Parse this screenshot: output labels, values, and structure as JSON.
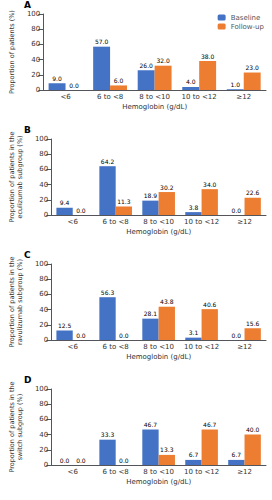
{
  "chart_data": [
    {
      "type": "bar",
      "title": "A",
      "ylabel": "Proportion of patients (%)",
      "xlabel": "Hemoglobin (g/dL)",
      "categories": [
        "<6",
        "6 to <8",
        "8 to <10",
        "10 to <12",
        "≥12"
      ],
      "series": [
        {
          "name": "Baseline",
          "color": "#4472c4",
          "values": [
            9.0,
            57.0,
            26.0,
            4.0,
            1.0
          ],
          "value_labels": [
            "9.0",
            "57.0",
            "26.0",
            "4.0",
            "1.0"
          ]
        },
        {
          "name": "Follow-up",
          "color": "#ed7d31",
          "values": [
            0.0,
            6.0,
            32.0,
            38.0,
            23.0
          ],
          "value_labels": [
            "0.0",
            "6.0",
            "32.0",
            "38.0",
            "23.0"
          ]
        }
      ],
      "ylim": [
        0,
        100
      ],
      "yticks": [
        0,
        20,
        40,
        60,
        80,
        100
      ],
      "grid": false,
      "data_labels": true,
      "legend": "upper right"
    },
    {
      "type": "bar",
      "title": "B",
      "ylabel": "Proportion of patients in the\neculizumab subgroup (%)",
      "xlabel": "Hemoglobin (g/dL)",
      "categories": [
        "<6",
        "6 to <8",
        "8 to <10",
        "10 to <12",
        "≥12"
      ],
      "series": [
        {
          "name": "Baseline",
          "color": "#4472c4",
          "values": [
            9.4,
            64.2,
            18.9,
            3.8,
            0.0
          ],
          "value_labels": [
            "9.4",
            "64.2",
            "18.9",
            "3.8",
            "0.0"
          ]
        },
        {
          "name": "Follow-up",
          "color": "#ed7d31",
          "values": [
            0.0,
            11.3,
            30.2,
            34.0,
            22.6
          ],
          "value_labels": [
            "0.0",
            "11.3",
            "30.2",
            "34.0",
            "22.6"
          ]
        }
      ],
      "ylim": [
        0,
        100
      ],
      "yticks": [
        0,
        20,
        40,
        60,
        80,
        100
      ],
      "grid": false,
      "data_labels": true
    },
    {
      "type": "bar",
      "title": "C",
      "ylabel": "Proportion of patients in the\nravulizumab subgroup (%)",
      "xlabel": "Hemoglobin (g/dL)",
      "categories": [
        "<6",
        "6 to <8",
        "8 to <10",
        "10 to <12",
        "≥12"
      ],
      "series": [
        {
          "name": "Baseline",
          "color": "#4472c4",
          "values": [
            12.5,
            56.3,
            28.1,
            3.1,
            0.0
          ],
          "value_labels": [
            "12.5",
            "56.3",
            "28.1",
            "3.1",
            "0.0"
          ]
        },
        {
          "name": "Follow-up",
          "color": "#ed7d31",
          "values": [
            0.0,
            0.0,
            43.8,
            40.6,
            15.6
          ],
          "value_labels": [
            "0.0",
            "0.0",
            "43.8",
            "40.6",
            "15.6"
          ]
        }
      ],
      "ylim": [
        0,
        100
      ],
      "yticks": [
        0,
        20,
        40,
        60,
        80,
        100
      ],
      "grid": false,
      "data_labels": true
    },
    {
      "type": "bar",
      "title": "D",
      "ylabel": "Proportion of patients in the\nswitch subgroup (%)",
      "xlabel": "Hemoglobin (g/dL)",
      "categories": [
        "<6",
        "6 to <8",
        "8 to <10",
        "10 to <12",
        "≥12"
      ],
      "series": [
        {
          "name": "Baseline",
          "color": "#4472c4",
          "values": [
            0.0,
            33.3,
            46.7,
            6.7,
            6.7
          ],
          "value_labels": [
            "0.0",
            "33.3",
            "46.7",
            "6.7",
            "6.7"
          ]
        },
        {
          "name": "Follow-up",
          "color": "#ed7d31",
          "values": [
            0.0,
            0.0,
            13.3,
            46.7,
            40.0
          ],
          "value_labels": [
            "0.0",
            "0.0",
            "13.3",
            "46.7",
            "40.0"
          ]
        }
      ],
      "ylim": [
        0,
        100
      ],
      "yticks": [
        0,
        20,
        40,
        60,
        80,
        100
      ],
      "grid": false,
      "data_labels": true
    }
  ]
}
